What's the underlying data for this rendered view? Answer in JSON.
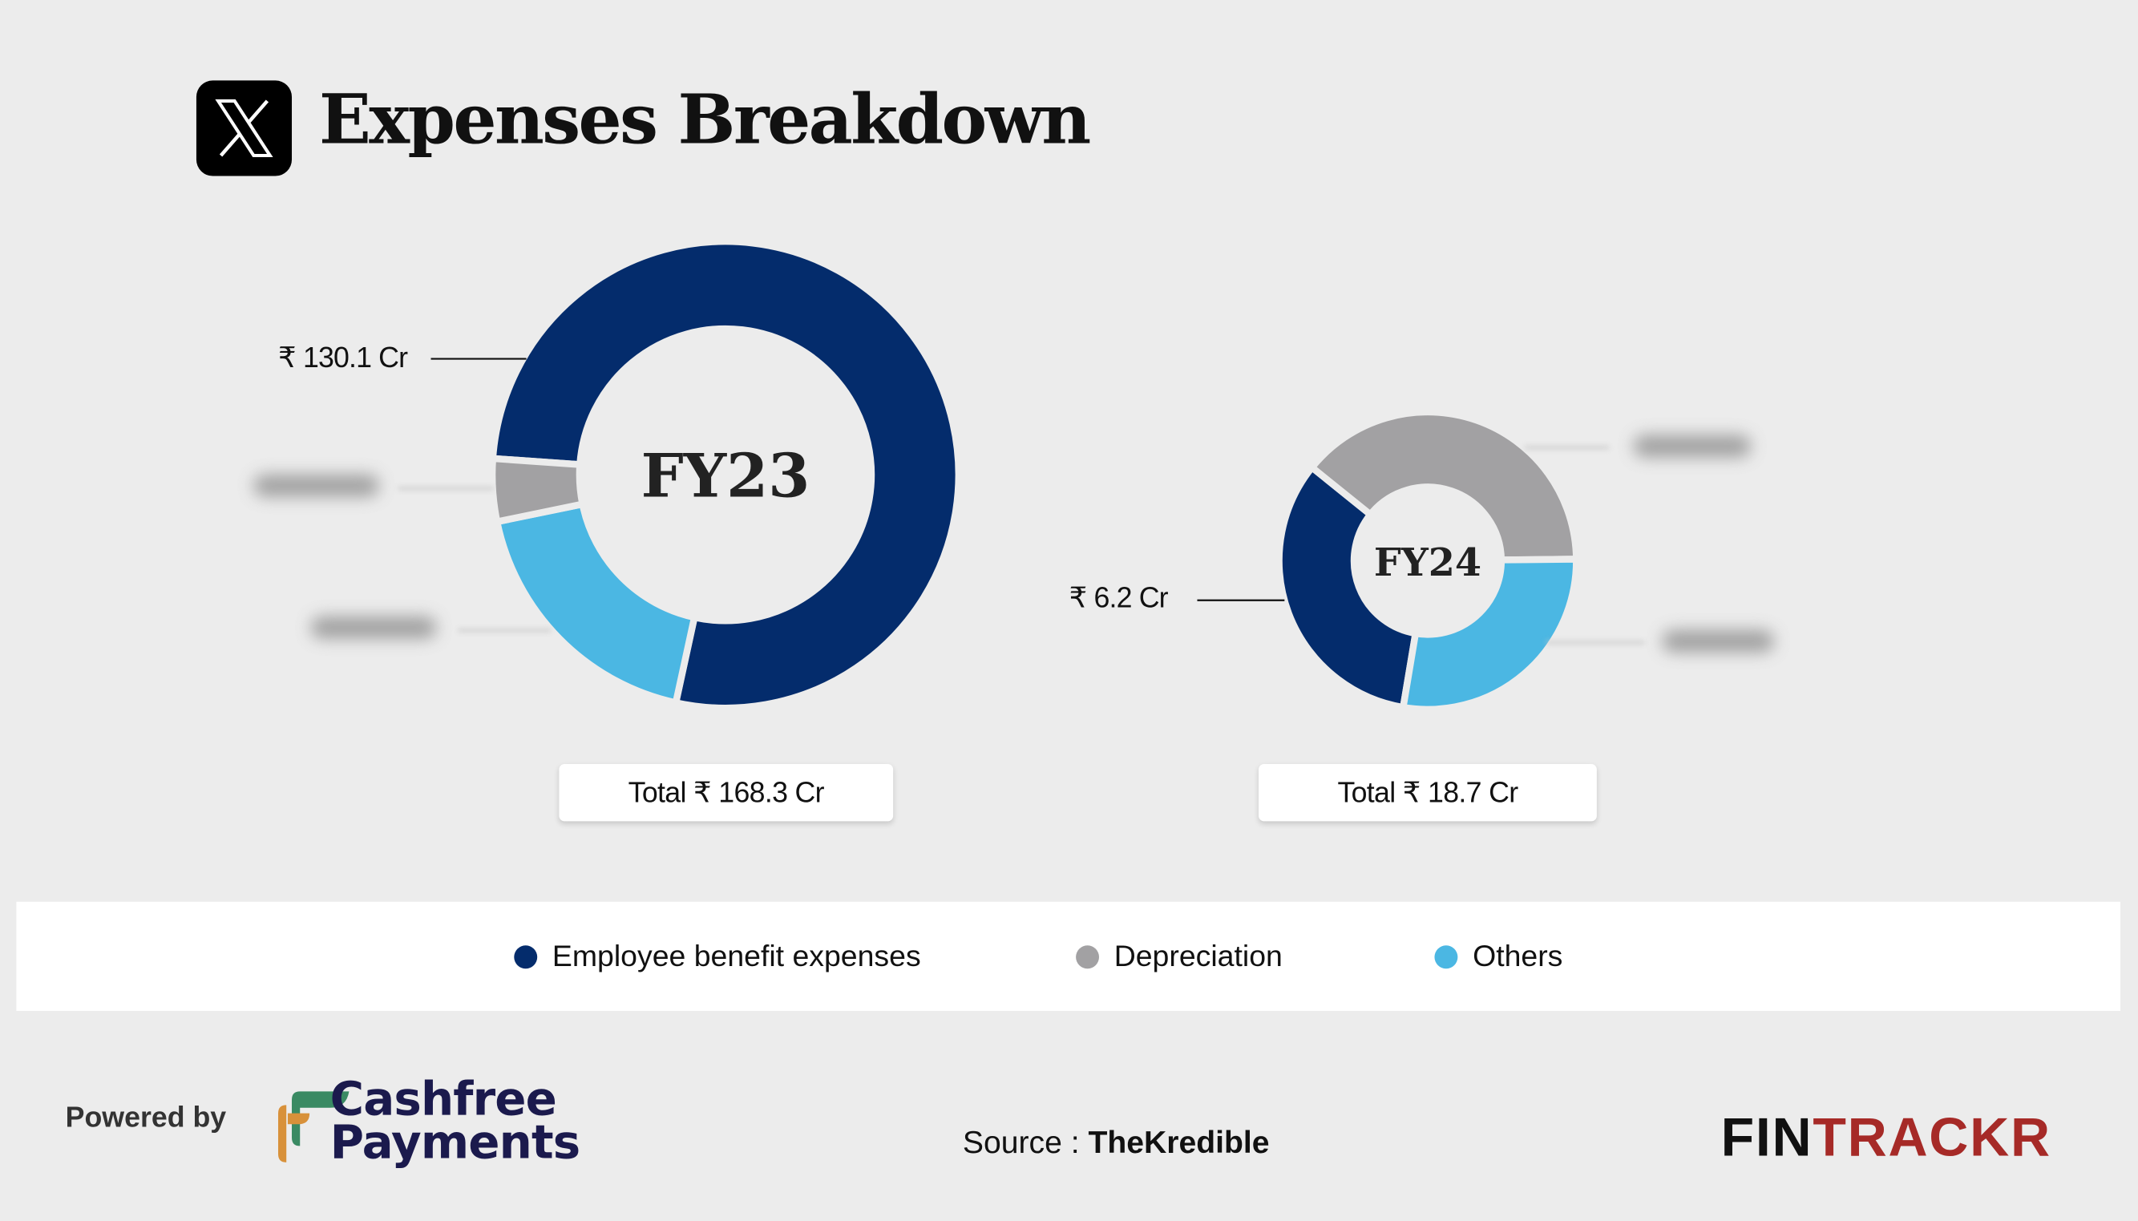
{
  "header": {
    "title": "Expenses Breakdown",
    "logo_icon": "x-logo-icon"
  },
  "colors": {
    "employee": "#042c6c",
    "depreciation": "#a2a1a3",
    "others": "#4bb7e3",
    "background": "#ececec"
  },
  "chart_data": [
    {
      "type": "pie",
      "title": "FY23",
      "categories": [
        "Employee benefit expenses",
        "Depreciation",
        "Others"
      ],
      "values": [
        130.1,
        7.3,
        30.9
      ],
      "unit": "₹ Cr",
      "visible_labels": {
        "employee": "₹ 130.1 Cr"
      },
      "total_label": "Total ₹ 168.3 Cr"
    },
    {
      "type": "pie",
      "title": "FY24",
      "categories": [
        "Employee benefit expenses",
        "Depreciation",
        "Others"
      ],
      "values": [
        6.2,
        7.3,
        5.2
      ],
      "unit": "₹ Cr",
      "visible_labels": {
        "employee": "₹ 6.2 Cr"
      },
      "total_label": "Total ₹ 18.7 Cr"
    }
  ],
  "legend": [
    {
      "label": "Employee benefit expenses",
      "color": "#042c6c"
    },
    {
      "label": "Depreciation",
      "color": "#a2a1a3"
    },
    {
      "label": "Others",
      "color": "#4bb7e3"
    }
  ],
  "footer": {
    "powered_by": "Powered by",
    "sponsor_line1": "Cashfree",
    "sponsor_line2": "Payments",
    "source_prefix": "Source : ",
    "source_name": "TheKredible",
    "brand_part1": "FIN",
    "brand_part2": "TRACKR"
  }
}
